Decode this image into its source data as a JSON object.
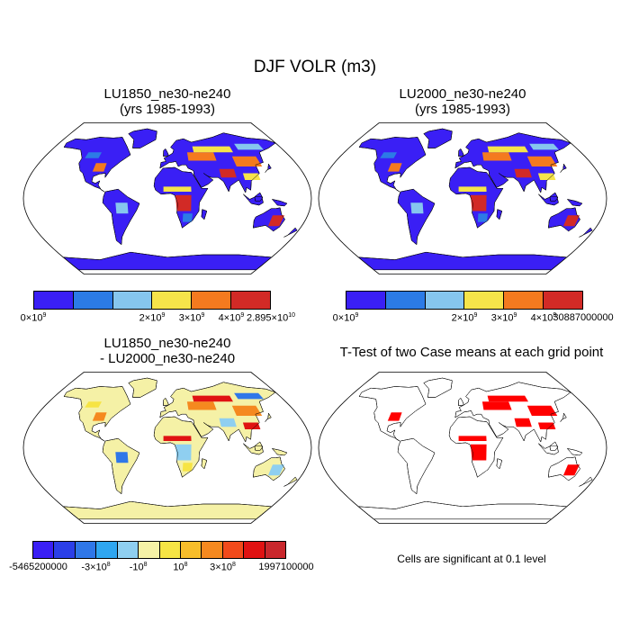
{
  "title": "DJF VOLR (m3)",
  "panels": {
    "top_left": {
      "title_line1": "LU1850_ne30-ne240",
      "title_line2": "(yrs 1985-1993)"
    },
    "top_right": {
      "title_line1": "LU2000_ne30-ne240",
      "title_line2": "(yrs 1985-1993)"
    },
    "bottom_left": {
      "title_line1": "LU1850_ne30-ne240",
      "title_line2": "- LU2000_ne30-ne240"
    },
    "bottom_right": {
      "title": "T-Test of two Case means at each grid point"
    }
  },
  "colorbars": {
    "cb1": {
      "colors": [
        "#3a1ff5",
        "#2c7be6",
        "#86c6ee",
        "#f6e44a",
        "#f47a1f",
        "#d22a26"
      ],
      "ticks": [
        {
          "label": "0×10",
          "sup": "9"
        },
        {
          "label": "2×10",
          "sup": "9"
        },
        {
          "label": "3×10",
          "sup": "9"
        },
        {
          "label": "4×10",
          "sup": "9"
        },
        {
          "label": "2.895×10",
          "sup": "10"
        }
      ]
    },
    "cb2": {
      "colors": [
        "#3a1ff5",
        "#2c7be6",
        "#86c6ee",
        "#f6e44a",
        "#f47a1f",
        "#d22a26"
      ],
      "ticks": [
        {
          "label": "0×10",
          "sup": "9"
        },
        {
          "label": "2×10",
          "sup": "9"
        },
        {
          "label": "3×10",
          "sup": "9"
        },
        {
          "label": "4×10",
          "sup": "9"
        },
        {
          "label": "30887000000",
          "sup": ""
        }
      ]
    },
    "cb3": {
      "colors": [
        "#3a1ff5",
        "#2b3fe8",
        "#2f77e8",
        "#2fa6f0",
        "#8fcff0",
        "#f5f1a6",
        "#f6e444",
        "#f7bd2a",
        "#f5891f",
        "#f24a1b",
        "#e01212",
        "#c9272c"
      ],
      "ticks": [
        {
          "label": "-5465200000",
          "sup": ""
        },
        {
          "label": "-3×10",
          "sup": "8"
        },
        {
          "label": "-10",
          "sup": "8"
        },
        {
          "label": "10",
          "sup": "8"
        },
        {
          "label": "3×10",
          "sup": "8"
        },
        {
          "label": "1997100000",
          "sup": ""
        }
      ]
    }
  },
  "significance_note": "Cells are significant at 0.1 level",
  "map_colors": {
    "panel1": {
      "land": "#3a1ff5",
      "hot1": "#d22a26",
      "hot2": "#f47a1f",
      "hot3": "#f6e44a",
      "hot4": "#86c6ee",
      "hot5": "#2c7be6"
    },
    "panel2": {
      "land": "#3a1ff5",
      "hot1": "#d22a26",
      "hot2": "#f47a1f",
      "hot3": "#f6e44a",
      "hot4": "#86c6ee",
      "hot5": "#2c7be6"
    },
    "panel3": {
      "land": "#f5f1a6",
      "hot1": "#8fcff0",
      "hot2": "#f5891f",
      "hot3": "#e01212",
      "hot4": "#2f77e8",
      "hot5": "#f6e444"
    },
    "panel4": {
      "land": "#ffffff",
      "hot1": "#ff0000",
      "hot2": "#ff0000",
      "hot3": "#ff0000",
      "hot4": "#ffffff",
      "hot5": "#ffffff"
    }
  }
}
